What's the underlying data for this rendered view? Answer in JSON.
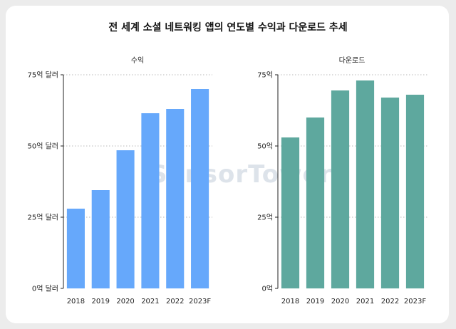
{
  "title": "전 세계 소셜 네트워킹 앱의 연도별 수익과 다운로드 추세",
  "watermark": "SensorTower",
  "chart_data": [
    {
      "type": "bar",
      "title": "수익",
      "categories": [
        "2018",
        "2019",
        "2020",
        "2021",
        "2022",
        "2023F"
      ],
      "values": [
        28,
        34.5,
        48.5,
        61.5,
        63,
        70
      ],
      "ylim": [
        0,
        75
      ],
      "yticks": [
        0,
        25,
        50,
        75
      ],
      "ytick_labels": [
        "0억 달러",
        "25억 달러",
        "50억 달러",
        "75억 달러"
      ],
      "grid": "dotted-horizontal",
      "color": "#66a8fb"
    },
    {
      "type": "bar",
      "title": "다운로드",
      "categories": [
        "2018",
        "2019",
        "2020",
        "2021",
        "2022",
        "2023F"
      ],
      "values": [
        53,
        60,
        69.5,
        73,
        67,
        68
      ],
      "ylim": [
        0,
        75
      ],
      "yticks": [
        0,
        25,
        50,
        75
      ],
      "ytick_labels": [
        "0억",
        "25억",
        "50억",
        "75억"
      ],
      "grid": "dotted-horizontal",
      "color": "#5ea89e"
    }
  ]
}
